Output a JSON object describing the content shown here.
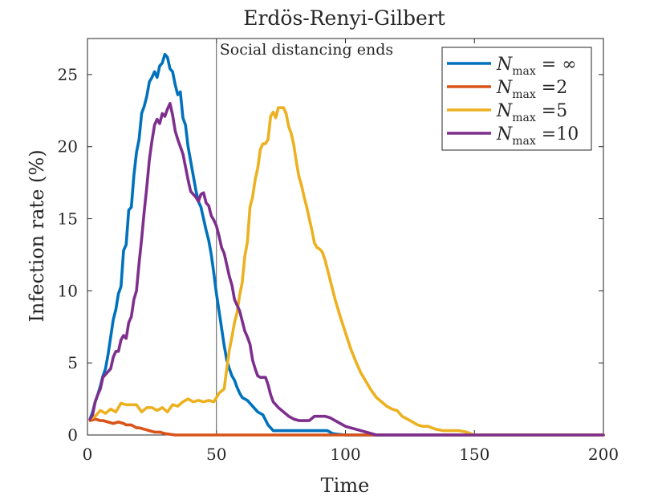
{
  "chart_data": {
    "type": "line",
    "title": "Erdös-Renyi-Gilbert",
    "xlabel": "Time",
    "ylabel": "Infection rate (%)",
    "xlim": [
      0,
      200
    ],
    "ylim": [
      0,
      27.5
    ],
    "grid": false,
    "legend_position": "top-right",
    "xticks": [
      0,
      50,
      100,
      150,
      200
    ],
    "yticks": [
      0,
      5,
      10,
      15,
      20,
      25
    ],
    "annotations": [
      {
        "text": "Social distancing ends",
        "x": 50
      }
    ],
    "series": [
      {
        "name": "N_max = ∞",
        "legend": {
          "main": "N",
          "sub": "max",
          "suffix": " = ∞"
        },
        "color": "#0072BD",
        "x": [
          1,
          2,
          3,
          4,
          5,
          6,
          7,
          8,
          9,
          10,
          11,
          12,
          13,
          14,
          15,
          16,
          17,
          18,
          19,
          20,
          21,
          22,
          23,
          24,
          25,
          26,
          27,
          28,
          29,
          30,
          31,
          32,
          33,
          34,
          35,
          36,
          37,
          38,
          39,
          40,
          41,
          42,
          43,
          44,
          45,
          46,
          47,
          48,
          49,
          50,
          51,
          52,
          53,
          54,
          55,
          56,
          57,
          58,
          59,
          60,
          62,
          64,
          66,
          68,
          70,
          72,
          74,
          76,
          78,
          80,
          85,
          90,
          93,
          95,
          97,
          100,
          105,
          110,
          200
        ],
        "y": [
          1.1,
          1.6,
          2.3,
          2.8,
          3.4,
          4.1,
          4.6,
          5.6,
          6.8,
          8,
          8.7,
          9.8,
          10.3,
          12.8,
          13.2,
          15.6,
          15.8,
          18,
          19.6,
          20.5,
          22.3,
          22.8,
          23.5,
          24.5,
          24.8,
          25.2,
          24.8,
          25.6,
          25.8,
          26.4,
          26.2,
          25.4,
          25.2,
          24.3,
          23.6,
          23.8,
          22,
          21.5,
          20,
          19,
          18,
          17,
          16.2,
          15.8,
          15,
          14.2,
          13.5,
          12.5,
          11.2,
          9.8,
          8.6,
          7.4,
          6.2,
          5.2,
          4.6,
          4.1,
          3.8,
          3.3,
          2.9,
          2.6,
          2.4,
          2,
          1.6,
          1.4,
          0.7,
          0.3,
          0.3,
          0.3,
          0.3,
          0.3,
          0.3,
          0.3,
          0.3,
          0.1,
          0.05,
          0,
          0,
          0,
          0
        ]
      },
      {
        "name": "N_max =2",
        "legend": {
          "main": "N",
          "sub": "max",
          "suffix": " =2"
        },
        "color": "#D95319",
        "x": [
          1,
          3,
          5,
          6,
          8,
          10,
          12,
          14,
          15,
          17,
          19,
          20,
          22,
          24,
          26,
          28,
          30,
          32,
          34,
          200
        ],
        "y": [
          1,
          1.1,
          1,
          1,
          0.9,
          0.8,
          0.9,
          0.8,
          0.7,
          0.7,
          0.5,
          0.5,
          0.4,
          0.3,
          0.2,
          0.2,
          0.1,
          0.05,
          0,
          0
        ]
      },
      {
        "name": "N_max =5",
        "legend": {
          "main": "N",
          "sub": "max",
          "suffix": " =5"
        },
        "color": "#EDB120",
        "x": [
          1,
          3,
          5,
          7,
          9,
          11,
          13,
          15,
          17,
          19,
          21,
          23,
          25,
          27,
          29,
          31,
          33,
          35,
          37,
          39,
          41,
          43,
          45,
          47,
          49,
          51,
          53,
          54,
          55,
          56,
          57,
          58,
          59,
          60,
          61,
          62,
          63,
          64,
          65,
          66,
          67,
          68,
          69,
          70,
          71,
          72,
          73,
          74,
          75,
          76,
          77,
          78,
          79,
          80,
          81,
          82,
          83,
          84,
          85,
          86,
          87,
          88,
          89,
          90,
          91,
          92,
          94,
          96,
          98,
          100,
          102,
          104,
          106,
          108,
          110,
          112,
          114,
          116,
          118,
          120,
          122,
          124,
          126,
          128,
          130,
          132,
          135,
          138,
          141,
          144,
          147,
          150,
          200
        ],
        "y": [
          1.1,
          1.3,
          1.7,
          1.5,
          1.8,
          1.6,
          2.2,
          2.1,
          2.1,
          2.1,
          1.6,
          1.9,
          1.9,
          1.7,
          1.9,
          1.6,
          2.1,
          2,
          2.3,
          2.5,
          2.3,
          2.4,
          2.3,
          2.4,
          2.3,
          2.9,
          3.2,
          4.6,
          5.9,
          6.8,
          7.8,
          8.5,
          9.7,
          10.6,
          12.4,
          13.4,
          15.8,
          16.5,
          17.7,
          18.5,
          19.8,
          20.2,
          20.2,
          20.5,
          22.1,
          22.4,
          22,
          22.7,
          22.7,
          22.7,
          22.3,
          21.4,
          20.9,
          20.1,
          18.9,
          17.9,
          17.3,
          16.5,
          15.8,
          15,
          14.2,
          13.3,
          13,
          12.9,
          12.7,
          12.2,
          10.8,
          9.4,
          8.2,
          7.1,
          6,
          5.1,
          4.3,
          3.7,
          3.1,
          2.6,
          2.3,
          2,
          1.8,
          1.7,
          1.3,
          1.1,
          0.9,
          0.7,
          0.6,
          0.6,
          0.4,
          0.3,
          0.3,
          0.3,
          0.2,
          0,
          0
        ]
      },
      {
        "name": "N_max =10",
        "legend": {
          "main": "N",
          "sub": "max",
          "suffix": " =10"
        },
        "color": "#7E2F8E",
        "x": [
          1,
          2,
          3,
          4,
          5,
          6,
          7,
          8,
          9,
          10,
          11,
          12,
          13,
          14,
          15,
          16,
          17,
          18,
          19,
          20,
          21,
          22,
          23,
          24,
          25,
          26,
          27,
          28,
          29,
          30,
          31,
          32,
          33,
          34,
          35,
          36,
          37,
          38,
          39,
          40,
          41,
          42,
          43,
          44,
          45,
          46,
          47,
          48,
          49,
          50,
          51,
          52,
          53,
          54,
          55,
          56,
          57,
          58,
          59,
          60,
          61,
          62,
          63,
          64,
          65,
          66,
          67,
          68,
          69,
          70,
          71,
          72,
          74,
          76,
          78,
          80,
          82,
          84,
          86,
          88,
          90,
          92,
          94,
          96,
          98,
          100,
          104,
          108,
          112,
          200
        ],
        "y": [
          1.1,
          1.4,
          2.3,
          2.8,
          3.2,
          4,
          4.2,
          4.4,
          4.6,
          5.4,
          5.8,
          5.8,
          6.6,
          6.9,
          6.7,
          7.8,
          8.2,
          9.4,
          10,
          11.9,
          13.6,
          15.5,
          17.2,
          19.1,
          20.4,
          21.5,
          21.9,
          21.6,
          22.3,
          22.1,
          22.6,
          23,
          22.2,
          21.1,
          20.5,
          20,
          19.5,
          18.6,
          17.7,
          16.9,
          16.7,
          16.5,
          16.2,
          16.7,
          16.8,
          16.1,
          15.9,
          15.2,
          14.9,
          14.5,
          13.8,
          13,
          12.6,
          11.8,
          11,
          10.4,
          9.4,
          9,
          8.6,
          7.9,
          7.2,
          6.8,
          6.3,
          5.2,
          4.6,
          4.1,
          4,
          4,
          4,
          3.5,
          2.8,
          2.3,
          1.9,
          1.6,
          1.3,
          1.1,
          1,
          1,
          1,
          1.3,
          1.3,
          1.3,
          1.2,
          1,
          0.8,
          0.6,
          0.4,
          0.2,
          0,
          0
        ]
      }
    ]
  }
}
